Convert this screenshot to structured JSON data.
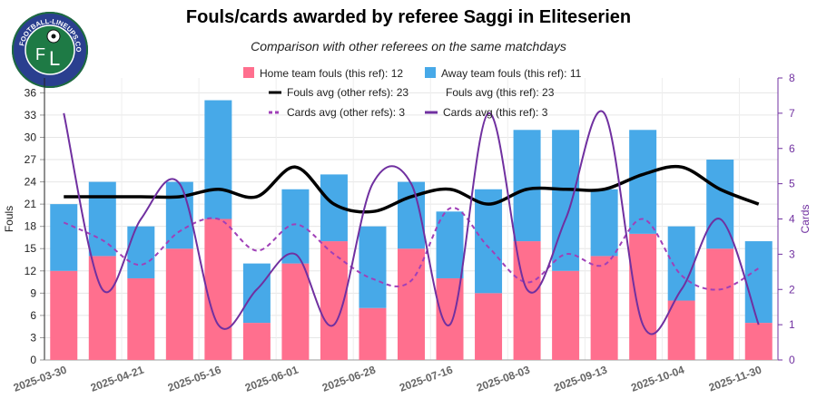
{
  "chart_data": {
    "type": "bar",
    "title": "Fouls/cards awarded by referee Saggi in Eliteserien",
    "subtitle": "Comparison with other referees on the same matchdays",
    "ylabel": "Fouls",
    "y2label": "Cards",
    "ylim": [
      0,
      38
    ],
    "y2lim": [
      0,
      8
    ],
    "yticks": [
      "0",
      "3",
      "6",
      "9",
      "12",
      "15",
      "18",
      "21",
      "24",
      "27",
      "30",
      "33",
      "36"
    ],
    "y2ticks": [
      "0",
      "1",
      "2",
      "3",
      "4",
      "5",
      "6",
      "7",
      "8"
    ],
    "x_tick_labels": [
      "2025-03-30",
      "2025-04-21",
      "2025-05-16",
      "2025-06-01",
      "2025-06-28",
      "2025-07-16",
      "2025-08-03",
      "2025-09-13",
      "2025-10-04",
      "2025-11-30"
    ],
    "x_tick_every": 2,
    "n_matches": 19,
    "legend": [
      {
        "label": "Home team fouls (this ref): 12",
        "kind": "box",
        "color": "#ff6f8e"
      },
      {
        "label": "Away team fouls (this ref): 11",
        "kind": "box",
        "color": "#47a9e8"
      },
      {
        "label": "Fouls avg (other refs): 23",
        "kind": "line",
        "color": "#000000"
      },
      {
        "label": "Fouls avg (this ref): 23",
        "kind": "none",
        "color": "#000000"
      },
      {
        "label": "Cards avg (other refs): 3",
        "kind": "dash",
        "color": "#a040b8"
      },
      {
        "label": "Cards avg (this ref): 3",
        "kind": "line",
        "color": "#7030a0"
      }
    ],
    "series": [
      {
        "name": "Home team fouls (this ref)",
        "type": "bar",
        "stack": true,
        "color": "#ff6f8e",
        "values": [
          12,
          14,
          11,
          15,
          19,
          5,
          13,
          16,
          7,
          15,
          11,
          9,
          16,
          12,
          14,
          17,
          8,
          15,
          5
        ]
      },
      {
        "name": "Away team fouls (this ref)",
        "type": "bar",
        "stack": true,
        "color": "#47a9e8",
        "values": [
          9,
          10,
          7,
          9,
          16,
          8,
          10,
          9,
          11,
          9,
          9,
          14,
          15,
          19,
          9,
          14,
          10,
          12,
          11
        ]
      },
      {
        "name": "Fouls avg (other refs)",
        "type": "line",
        "axis": "left",
        "color": "#000000",
        "values": [
          22,
          22,
          22,
          22,
          23,
          22,
          26,
          21,
          20,
          22,
          23,
          21,
          23,
          23,
          23,
          25,
          26,
          23,
          21
        ]
      },
      {
        "name": "Cards avg (other refs)",
        "type": "line",
        "axis": "right",
        "dashed": true,
        "color": "#a040b8",
        "values": [
          3.9,
          3.4,
          2.7,
          3.65,
          4.0,
          3.1,
          3.85,
          3.0,
          2.3,
          2.25,
          4.3,
          3.2,
          2.2,
          3.0,
          2.7,
          4.0,
          2.4,
          2.0,
          2.6
        ]
      },
      {
        "name": "Cards (this ref)",
        "type": "line",
        "axis": "right",
        "color": "#7030a0",
        "values": [
          7,
          2,
          4,
          5,
          1,
          2,
          3,
          1,
          5,
          5,
          1,
          7,
          2,
          4,
          7,
          1,
          2,
          4,
          1
        ]
      }
    ]
  },
  "logo_text": "FOOTBALL-LINEUPS.COM"
}
